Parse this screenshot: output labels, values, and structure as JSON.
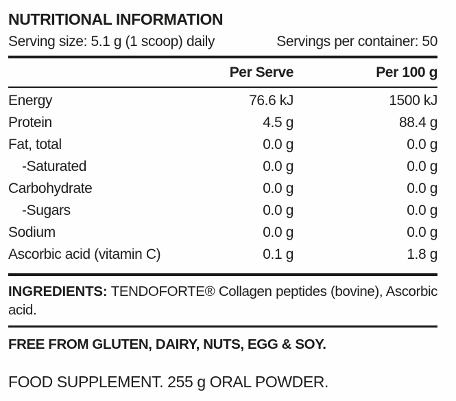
{
  "title": "NUTRITIONAL INFORMATION",
  "serving": {
    "size_label": "Serving size: 5.1 g (1 scoop) daily",
    "per_container_label": "Servings per container: 50"
  },
  "table": {
    "columns": [
      "Per Serve",
      "Per 100 g"
    ],
    "rows": [
      {
        "nutrient": "Energy",
        "per_serve": "76.6 kJ",
        "per_100g": "1500 kJ"
      },
      {
        "nutrient": "Protein",
        "per_serve": "4.5 g",
        "per_100g": "88.4 g"
      },
      {
        "nutrient": "Fat, total",
        "per_serve": "0.0 g",
        "per_100g": "0.0 g"
      },
      {
        "nutrient": "-Saturated",
        "per_serve": "0.0 g",
        "per_100g": "0.0 g"
      },
      {
        "nutrient": "Carbohydrate",
        "per_serve": "0.0 g",
        "per_100g": "0.0 g"
      },
      {
        "nutrient": "-Sugars",
        "per_serve": "0.0 g",
        "per_100g": "0.0 g"
      },
      {
        "nutrient": "Sodium",
        "per_serve": "0.0 g",
        "per_100g": "0.0 g"
      },
      {
        "nutrient": "Ascorbic acid (vitamin C)",
        "per_serve": "0.1 g",
        "per_100g": "1.8 g"
      }
    ]
  },
  "ingredients": {
    "label": "INGREDIENTS:",
    "text": " TENDOFORTE® Collagen peptides (bovine), Ascorbic acid."
  },
  "free_from": "FREE FROM GLUTEN, DAIRY, NUTS, EGG & SOY.",
  "supplement": "FOOD SUPPLEMENT. 255 g ORAL POWDER.",
  "colors": {
    "text": "#1d1d1b",
    "rule": "#1a1a18",
    "background": "#fefefe"
  }
}
